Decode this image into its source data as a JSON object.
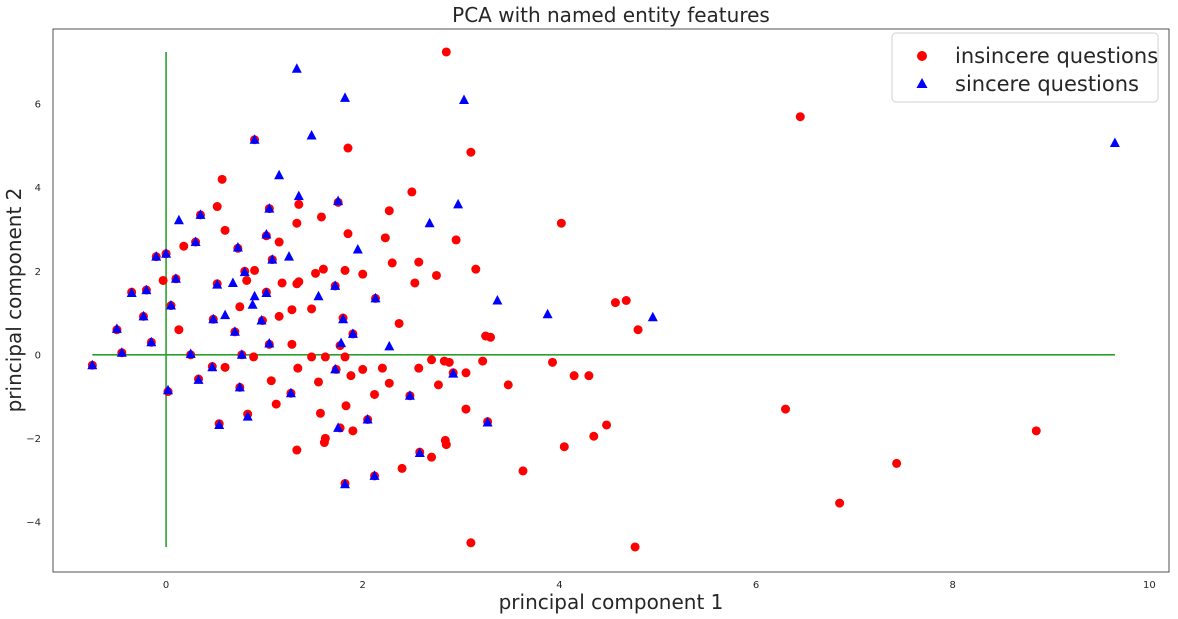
{
  "chart_data": {
    "type": "scatter",
    "title": "PCA with named entity features",
    "xlabel": "principal component 1",
    "ylabel": "principal component 2",
    "xlim": [
      -1.15,
      10.2
    ],
    "ylim": [
      -5.2,
      7.8
    ],
    "xticks": [
      0,
      2,
      4,
      6,
      8,
      10
    ],
    "yticks": [
      -4,
      -2,
      0,
      2,
      4,
      6
    ],
    "grid": false,
    "legend_position": "top-right",
    "reference_lines": {
      "color": "#2ca02c",
      "horizontal": {
        "y": 0,
        "x_from": -0.75,
        "x_to": 9.65
      },
      "vertical": {
        "x": 0,
        "y_from": -4.6,
        "y_to": 7.25
      }
    },
    "series": [
      {
        "name": "insincere questions",
        "marker": "circle",
        "color": "#ff0000",
        "points": [
          [
            2.85,
            7.25
          ],
          [
            0.9,
            5.15
          ],
          [
            1.85,
            4.95
          ],
          [
            3.1,
            4.85
          ],
          [
            6.45,
            5.7
          ],
          [
            0.57,
            4.2
          ],
          [
            2.5,
            3.9
          ],
          [
            1.35,
            3.6
          ],
          [
            1.75,
            3.65
          ],
          [
            0.52,
            3.55
          ],
          [
            1.05,
            3.5
          ],
          [
            1.58,
            3.3
          ],
          [
            2.27,
            3.45
          ],
          [
            0.35,
            3.35
          ],
          [
            1.33,
            3.15
          ],
          [
            4.02,
            3.15
          ],
          [
            0.6,
            2.98
          ],
          [
            1.85,
            2.9
          ],
          [
            1.02,
            2.85
          ],
          [
            2.95,
            2.75
          ],
          [
            0.3,
            2.7
          ],
          [
            1.15,
            2.7
          ],
          [
            2.23,
            2.8
          ],
          [
            0.18,
            2.6
          ],
          [
            0.73,
            2.55
          ],
          [
            0.0,
            2.42
          ],
          [
            -0.1,
            2.35
          ],
          [
            1.08,
            2.28
          ],
          [
            2.3,
            2.2
          ],
          [
            2.57,
            2.22
          ],
          [
            1.6,
            2.05
          ],
          [
            3.15,
            2.05
          ],
          [
            0.9,
            2.02
          ],
          [
            1.82,
            2.02
          ],
          [
            0.8,
            2.0
          ],
          [
            1.52,
            1.95
          ],
          [
            2.0,
            1.93
          ],
          [
            2.75,
            1.9
          ],
          [
            0.1,
            1.82
          ],
          [
            -0.03,
            1.78
          ],
          [
            0.82,
            1.78
          ],
          [
            1.35,
            1.75
          ],
          [
            1.33,
            1.7
          ],
          [
            2.53,
            1.72
          ],
          [
            1.18,
            1.72
          ],
          [
            0.52,
            1.7
          ],
          [
            1.72,
            1.65
          ],
          [
            -0.2,
            1.55
          ],
          [
            -0.35,
            1.5
          ],
          [
            1.02,
            1.5
          ],
          [
            2.13,
            1.35
          ],
          [
            4.68,
            1.3
          ],
          [
            4.57,
            1.25
          ],
          [
            0.05,
            1.18
          ],
          [
            0.75,
            1.15
          ],
          [
            1.48,
            1.1
          ],
          [
            1.28,
            1.08
          ],
          [
            1.15,
            0.92
          ],
          [
            -0.23,
            0.92
          ],
          [
            0.48,
            0.85
          ],
          [
            0.98,
            0.82
          ],
          [
            1.8,
            0.88
          ],
          [
            2.37,
            0.75
          ],
          [
            0.13,
            0.6
          ],
          [
            -0.5,
            0.6
          ],
          [
            4.8,
            0.6
          ],
          [
            1.9,
            0.5
          ],
          [
            0.7,
            0.55
          ],
          [
            3.25,
            0.45
          ],
          [
            3.3,
            0.42
          ],
          [
            1.05,
            0.25
          ],
          [
            1.28,
            0.25
          ],
          [
            1.77,
            0.22
          ],
          [
            -0.15,
            0.3
          ],
          [
            1.48,
            -0.05
          ],
          [
            1.62,
            -0.05
          ],
          [
            0.89,
            -0.05
          ],
          [
            1.82,
            -0.05
          ],
          [
            2.7,
            -0.12
          ],
          [
            2.83,
            -0.15
          ],
          [
            2.88,
            -0.18
          ],
          [
            3.22,
            -0.15
          ],
          [
            3.93,
            -0.18
          ],
          [
            -0.45,
            0.05
          ],
          [
            0.25,
            0.0
          ],
          [
            0.77,
            0.0
          ],
          [
            -0.75,
            -0.25
          ],
          [
            0.47,
            -0.28
          ],
          [
            0.6,
            -0.3
          ],
          [
            1.34,
            -0.32
          ],
          [
            1.73,
            -0.35
          ],
          [
            2.0,
            -0.35
          ],
          [
            2.2,
            -0.32
          ],
          [
            2.57,
            -0.32
          ],
          [
            2.92,
            -0.43
          ],
          [
            3.05,
            -0.43
          ],
          [
            1.88,
            -0.5
          ],
          [
            4.15,
            -0.5
          ],
          [
            4.3,
            -0.5
          ],
          [
            0.33,
            -0.58
          ],
          [
            1.07,
            -0.62
          ],
          [
            1.55,
            -0.65
          ],
          [
            2.27,
            -0.68
          ],
          [
            2.77,
            -0.72
          ],
          [
            3.48,
            -0.72
          ],
          [
            0.75,
            -0.78
          ],
          [
            0.02,
            -0.88
          ],
          [
            1.27,
            -0.92
          ],
          [
            2.12,
            -0.95
          ],
          [
            2.48,
            -0.98
          ],
          [
            1.12,
            -1.18
          ],
          [
            1.83,
            -1.22
          ],
          [
            3.05,
            -1.3
          ],
          [
            6.3,
            -1.3
          ],
          [
            1.57,
            -1.4
          ],
          [
            0.83,
            -1.42
          ],
          [
            2.05,
            -1.55
          ],
          [
            3.27,
            -1.6
          ],
          [
            4.48,
            -1.68
          ],
          [
            0.54,
            -1.65
          ],
          [
            1.77,
            -1.75
          ],
          [
            1.9,
            -1.82
          ],
          [
            8.85,
            -1.82
          ],
          [
            4.35,
            -1.95
          ],
          [
            1.62,
            -2.0
          ],
          [
            1.61,
            -2.1
          ],
          [
            2.84,
            -2.05
          ],
          [
            2.85,
            -2.15
          ],
          [
            4.05,
            -2.2
          ],
          [
            1.33,
            -2.28
          ],
          [
            2.58,
            -2.33
          ],
          [
            2.7,
            -2.45
          ],
          [
            7.43,
            -2.6
          ],
          [
            2.4,
            -2.72
          ],
          [
            3.63,
            -2.78
          ],
          [
            2.12,
            -2.9
          ],
          [
            6.85,
            -3.55
          ],
          [
            1.82,
            -3.08
          ],
          [
            3.1,
            -4.5
          ],
          [
            4.77,
            -4.6
          ]
        ]
      },
      {
        "name": "sincere questions",
        "marker": "triangle",
        "color": "#0000ff",
        "points": [
          [
            1.33,
            6.85
          ],
          [
            1.82,
            6.15
          ],
          [
            3.03,
            6.1
          ],
          [
            1.48,
            5.25
          ],
          [
            0.9,
            5.15
          ],
          [
            9.65,
            5.07
          ],
          [
            1.15,
            4.3
          ],
          [
            1.35,
            3.8
          ],
          [
            1.75,
            3.68
          ],
          [
            2.97,
            3.6
          ],
          [
            1.05,
            3.5
          ],
          [
            0.35,
            3.35
          ],
          [
            0.13,
            3.22
          ],
          [
            2.68,
            3.15
          ],
          [
            1.02,
            2.88
          ],
          [
            0.3,
            2.7
          ],
          [
            0.73,
            2.57
          ],
          [
            1.95,
            2.52
          ],
          [
            0.0,
            2.42
          ],
          [
            -0.1,
            2.35
          ],
          [
            1.25,
            2.35
          ],
          [
            1.08,
            2.28
          ],
          [
            0.8,
            1.98
          ],
          [
            0.1,
            1.82
          ],
          [
            0.68,
            1.72
          ],
          [
            0.52,
            1.68
          ],
          [
            1.72,
            1.65
          ],
          [
            -0.2,
            1.55
          ],
          [
            -0.35,
            1.48
          ],
          [
            1.02,
            1.48
          ],
          [
            0.9,
            1.4
          ],
          [
            1.55,
            1.4
          ],
          [
            2.13,
            1.35
          ],
          [
            3.37,
            1.3
          ],
          [
            0.88,
            1.2
          ],
          [
            0.05,
            1.18
          ],
          [
            3.88,
            0.97
          ],
          [
            0.6,
            0.95
          ],
          [
            -0.23,
            0.92
          ],
          [
            4.95,
            0.9
          ],
          [
            0.48,
            0.85
          ],
          [
            0.97,
            0.82
          ],
          [
            1.8,
            0.85
          ],
          [
            -0.5,
            0.62
          ],
          [
            0.7,
            0.55
          ],
          [
            1.9,
            0.5
          ],
          [
            -0.15,
            0.3
          ],
          [
            1.05,
            0.27
          ],
          [
            1.78,
            0.28
          ],
          [
            2.27,
            0.2
          ],
          [
            -0.45,
            0.05
          ],
          [
            0.25,
            0.02
          ],
          [
            0.77,
            0.0
          ],
          [
            -0.75,
            -0.25
          ],
          [
            0.47,
            -0.3
          ],
          [
            1.72,
            -0.35
          ],
          [
            2.92,
            -0.45
          ],
          [
            0.33,
            -0.6
          ],
          [
            0.75,
            -0.78
          ],
          [
            0.02,
            -0.85
          ],
          [
            1.27,
            -0.92
          ],
          [
            2.48,
            -0.98
          ],
          [
            0.83,
            -1.48
          ],
          [
            2.05,
            -1.55
          ],
          [
            3.27,
            -1.62
          ],
          [
            0.54,
            -1.68
          ],
          [
            1.75,
            -1.75
          ],
          [
            2.58,
            -2.35
          ],
          [
            2.12,
            -2.9
          ],
          [
            1.82,
            -3.1
          ]
        ]
      }
    ]
  }
}
